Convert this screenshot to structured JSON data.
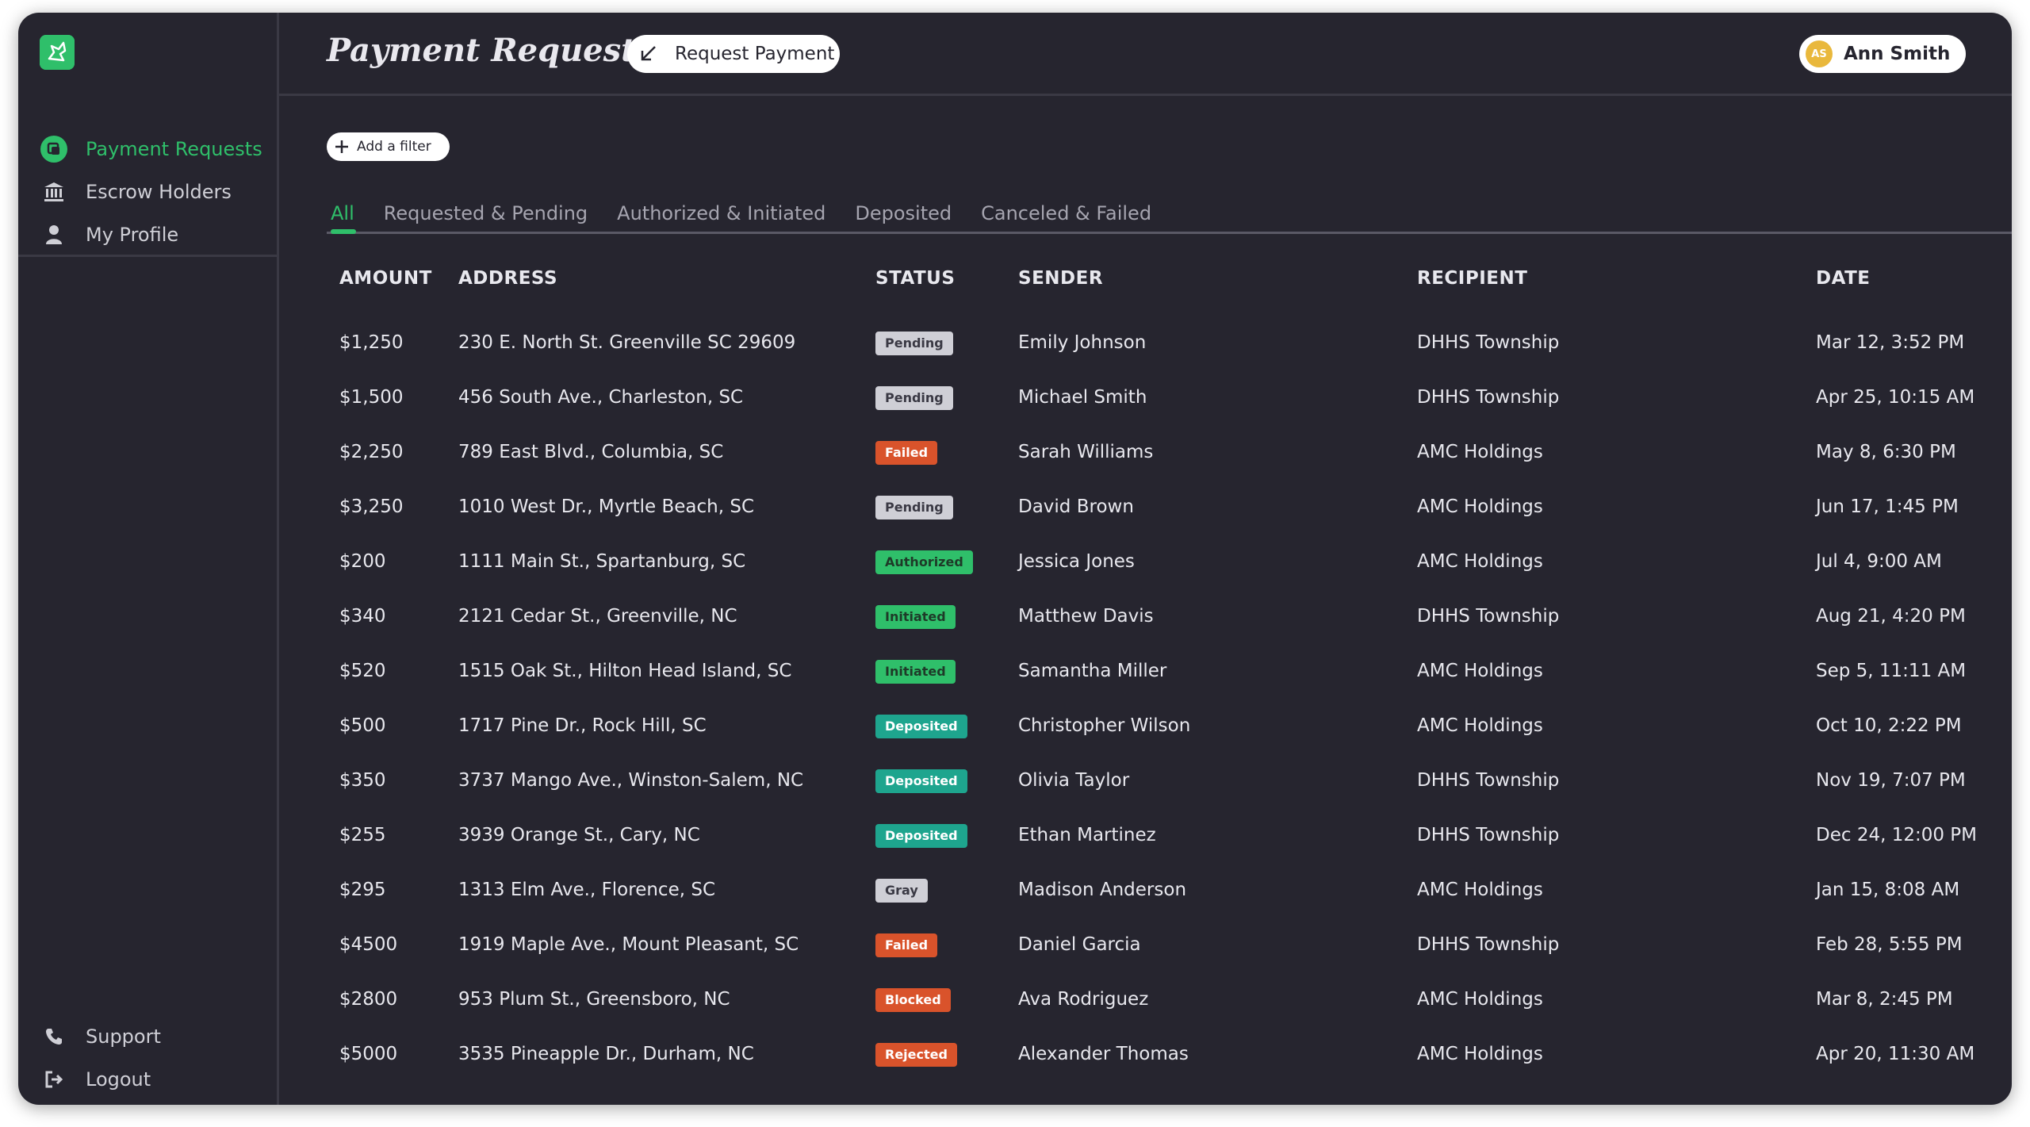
{
  "app": {
    "title": "Payment Requests"
  },
  "sidebar": {
    "items": [
      {
        "label": "Payment Requests",
        "icon": "payment-requests-icon",
        "active": true
      },
      {
        "label": "Escrow Holders",
        "icon": "bank-icon",
        "active": false
      },
      {
        "label": "My Profile",
        "icon": "user-icon",
        "active": false
      }
    ],
    "bottom": [
      {
        "label": "Support",
        "icon": "phone-icon"
      },
      {
        "label": "Logout",
        "icon": "logout-icon"
      }
    ]
  },
  "header": {
    "request_button_label": "Request Payment",
    "user": {
      "initials": "AS",
      "name": "Ann Smith"
    }
  },
  "filter": {
    "add_label": "Add a filter"
  },
  "tabs": [
    {
      "label": "All",
      "active": true
    },
    {
      "label": "Requested & Pending"
    },
    {
      "label": "Authorized & Initiated"
    },
    {
      "label": "Deposited"
    },
    {
      "label": "Canceled & Failed"
    }
  ],
  "table": {
    "columns": [
      "AMOUNT",
      "ADDRESS",
      "STATUS",
      "SENDER",
      "RECIPIENT",
      "DATE"
    ],
    "rows": [
      {
        "amount": "$1,250",
        "address": "230 E. North St. Greenville SC 29609",
        "status": "Pending",
        "sender": "Emily Johnson",
        "recipient": "DHHS Township",
        "date": "Mar 12, 3:52 PM"
      },
      {
        "amount": "$1,500",
        "address": "456 South Ave., Charleston, SC",
        "status": "Pending",
        "sender": "Michael Smith",
        "recipient": "DHHS Township",
        "date": "Apr 25, 10:15 AM"
      },
      {
        "amount": "$2,250",
        "address": "789 East Blvd., Columbia, SC",
        "status": "Failed",
        "sender": "Sarah Williams",
        "recipient": "AMC Holdings",
        "date": "May 8, 6:30 PM"
      },
      {
        "amount": "$3,250",
        "address": "1010 West Dr., Myrtle Beach, SC",
        "status": "Pending",
        "sender": "David Brown",
        "recipient": "AMC Holdings",
        "date": "Jun 17, 1:45 PM"
      },
      {
        "amount": "$200",
        "address": "1111 Main St., Spartanburg, SC",
        "status": "Authorized",
        "sender": "Jessica Jones",
        "recipient": "AMC Holdings",
        "date": "Jul 4, 9:00 AM"
      },
      {
        "amount": "$340",
        "address": "2121 Cedar St., Greenville, NC",
        "status": "Initiated",
        "sender": "Matthew Davis",
        "recipient": "DHHS Township",
        "date": "Aug 21, 4:20 PM"
      },
      {
        "amount": "$520",
        "address": "1515 Oak St., Hilton Head Island, SC",
        "status": "Initiated",
        "sender": "Samantha Miller",
        "recipient": "AMC Holdings",
        "date": "Sep 5, 11:11 AM"
      },
      {
        "amount": "$500",
        "address": "1717 Pine Dr., Rock Hill, SC",
        "status": "Deposited",
        "sender": "Christopher Wilson",
        "recipient": "AMC Holdings",
        "date": "Oct 10, 2:22 PM"
      },
      {
        "amount": "$350",
        "address": "3737 Mango Ave., Winston-Salem, NC",
        "status": "Deposited",
        "sender": "Olivia Taylor",
        "recipient": "DHHS Township",
        "date": "Nov 19, 7:07 PM"
      },
      {
        "amount": "$255",
        "address": "3939 Orange St., Cary, NC",
        "status": "Deposited",
        "sender": "Ethan Martinez",
        "recipient": "DHHS Township",
        "date": "Dec 24, 12:00 PM"
      },
      {
        "amount": "$295",
        "address": "1313 Elm Ave., Florence, SC",
        "status": "Gray",
        "sender": "Madison Anderson",
        "recipient": "AMC Holdings",
        "date": "Jan 15, 8:08 AM"
      },
      {
        "amount": "$4500",
        "address": "1919 Maple Ave., Mount Pleasant, SC",
        "status": "Failed",
        "sender": "Daniel Garcia",
        "recipient": "DHHS Township",
        "date": "Feb 28, 5:55 PM"
      },
      {
        "amount": "$2800",
        "address": "953 Plum St., Greensboro, NC",
        "status": "Blocked",
        "sender": "Ava Rodriguez",
        "recipient": "AMC Holdings",
        "date": "Mar 8, 2:45 PM"
      },
      {
        "amount": "$5000",
        "address": "3535 Pineapple Dr., Durham, NC",
        "status": "Rejected",
        "sender": "Alexander Thomas",
        "recipient": "AMC Holdings",
        "date": "Apr 20, 11:30 AM"
      }
    ]
  },
  "status_colors": {
    "Pending": {
      "bg": "#cfcfd6",
      "fg": "#3a3944"
    },
    "Gray": {
      "bg": "#cfcfd6",
      "fg": "#3a3944"
    },
    "Failed": {
      "bg": "#d9532b",
      "fg": "#ffffff"
    },
    "Blocked": {
      "bg": "#d9532b",
      "fg": "#ffffff"
    },
    "Rejected": {
      "bg": "#d9532b",
      "fg": "#ffffff"
    },
    "Authorized": {
      "bg": "#2fbf6a",
      "fg": "#1e3a28"
    },
    "Initiated": {
      "bg": "#2fbf6a",
      "fg": "#1e3a28"
    },
    "Deposited": {
      "bg": "#1ea58e",
      "fg": "#ffffff"
    }
  },
  "colors": {
    "accent": "#2fbf6a",
    "background": "#26252f"
  }
}
